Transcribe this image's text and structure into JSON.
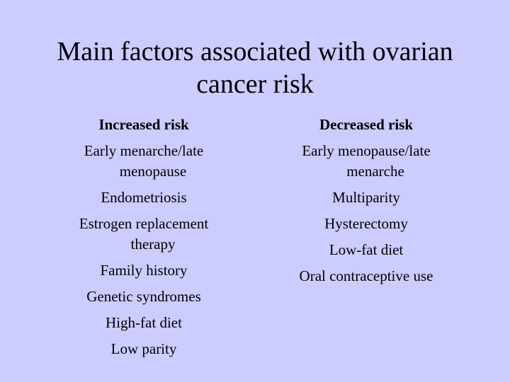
{
  "slide": {
    "title_line1": "Main factors associated with ovarian",
    "title_line2": "cancer risk",
    "background_color": "#ccccff"
  },
  "increased": {
    "header": "Increased risk",
    "items": [
      {
        "line1": "Early menarche/late",
        "line2": "menopause"
      },
      {
        "line1": "Endometriosis"
      },
      {
        "line1": "Estrogen replacement",
        "line2": "therapy"
      },
      {
        "line1": "Family history"
      },
      {
        "line1": "Genetic syndromes"
      },
      {
        "line1": "High-fat diet"
      },
      {
        "line1": "Low parity"
      }
    ]
  },
  "decreased": {
    "header": "Decreased risk",
    "items": [
      {
        "line1": "Early menopause/late",
        "line2": "menarche"
      },
      {
        "line1": "Multiparity"
      },
      {
        "line1": "Hysterectomy"
      },
      {
        "line1": "Low-fat diet"
      },
      {
        "line1": "Oral contraceptive use"
      }
    ]
  }
}
